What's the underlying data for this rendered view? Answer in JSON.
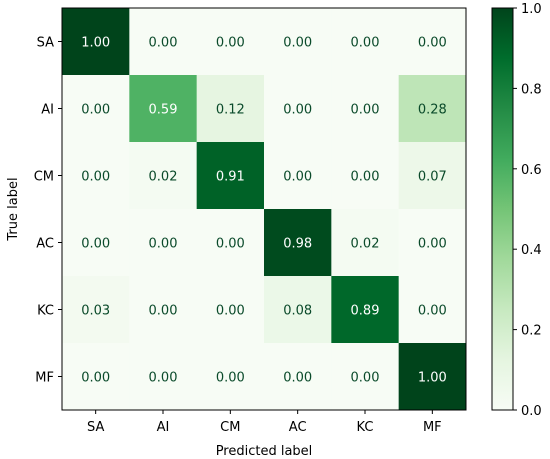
{
  "chart_data": {
    "type": "heatmap",
    "title": "",
    "xlabel": "Predicted label",
    "ylabel": "True label",
    "x_categories": [
      "SA",
      "AI",
      "CM",
      "AC",
      "KC",
      "MF"
    ],
    "y_categories": [
      "SA",
      "AI",
      "CM",
      "AC",
      "KC",
      "MF"
    ],
    "values": [
      [
        1.0,
        0.0,
        0.0,
        0.0,
        0.0,
        0.0
      ],
      [
        0.0,
        0.59,
        0.12,
        0.0,
        0.0,
        0.28
      ],
      [
        0.0,
        0.02,
        0.91,
        0.0,
        0.0,
        0.07
      ],
      [
        0.0,
        0.0,
        0.0,
        0.98,
        0.02,
        0.0
      ],
      [
        0.03,
        0.0,
        0.0,
        0.08,
        0.89,
        0.0
      ],
      [
        0.0,
        0.0,
        0.0,
        0.0,
        0.0,
        1.0
      ]
    ],
    "cell_labels": [
      [
        "1.00",
        "0.00",
        "0.00",
        "0.00",
        "0.00",
        "0.00"
      ],
      [
        "0.00",
        "0.59",
        "0.12",
        "0.00",
        "0.00",
        "0.28"
      ],
      [
        "0.00",
        "0.02",
        "0.91",
        "0.00",
        "0.00",
        "0.07"
      ],
      [
        "0.00",
        "0.00",
        "0.00",
        "0.98",
        "0.02",
        "0.00"
      ],
      [
        "0.03",
        "0.00",
        "0.00",
        "0.08",
        "0.89",
        "0.00"
      ],
      [
        "0.00",
        "0.00",
        "0.00",
        "0.00",
        "0.00",
        "1.00"
      ]
    ],
    "colormap": "Greens",
    "color_range": [
      0.0,
      1.0
    ],
    "colorbar_ticks": [
      "0.0",
      "0.2",
      "0.4",
      "0.6",
      "0.8",
      "1.0"
    ],
    "colorbar_values": [
      0.0,
      0.2,
      0.4,
      0.6,
      0.8,
      1.0
    ],
    "grid": false,
    "legend": "colorbar-right",
    "text_color_light": "#ffffff",
    "text_color_dark": "#0a4a2a"
  }
}
